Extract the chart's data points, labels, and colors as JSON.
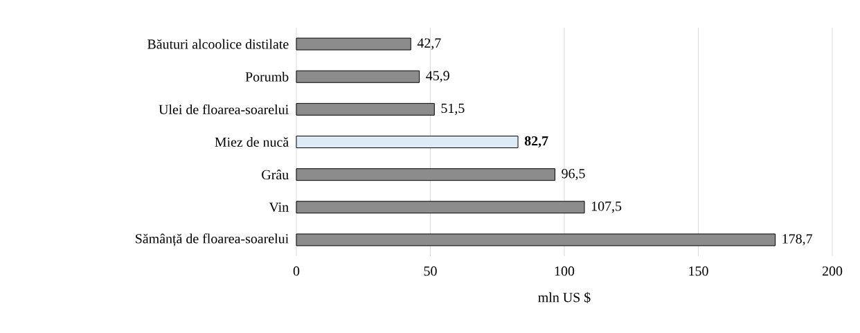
{
  "chart_data": {
    "type": "bar",
    "orientation": "horizontal",
    "xlabel": "mln US $",
    "categories": [
      "Băuturi alcoolice distilate",
      "Porumb",
      "Ulei de floarea-soarelui",
      "Miez de nucă",
      "Grâu",
      "Vin",
      "Sămânță de floarea-soarelui"
    ],
    "values": [
      42.7,
      45.9,
      51.5,
      82.7,
      96.5,
      107.5,
      178.7
    ],
    "value_labels": [
      "42,7",
      "45,9",
      "51,5",
      "**82,7**",
      "96,5",
      "107,5",
      "178,7"
    ],
    "colors": [
      "#8c8c8c",
      "#8c8c8c",
      "#8c8c8c",
      "#ddebf7",
      "#8c8c8c",
      "#8c8c8c",
      "#8c8c8c"
    ],
    "xlim": [
      0,
      200
    ],
    "xticks": [
      0,
      50,
      100,
      150,
      200
    ],
    "grid": "x"
  }
}
